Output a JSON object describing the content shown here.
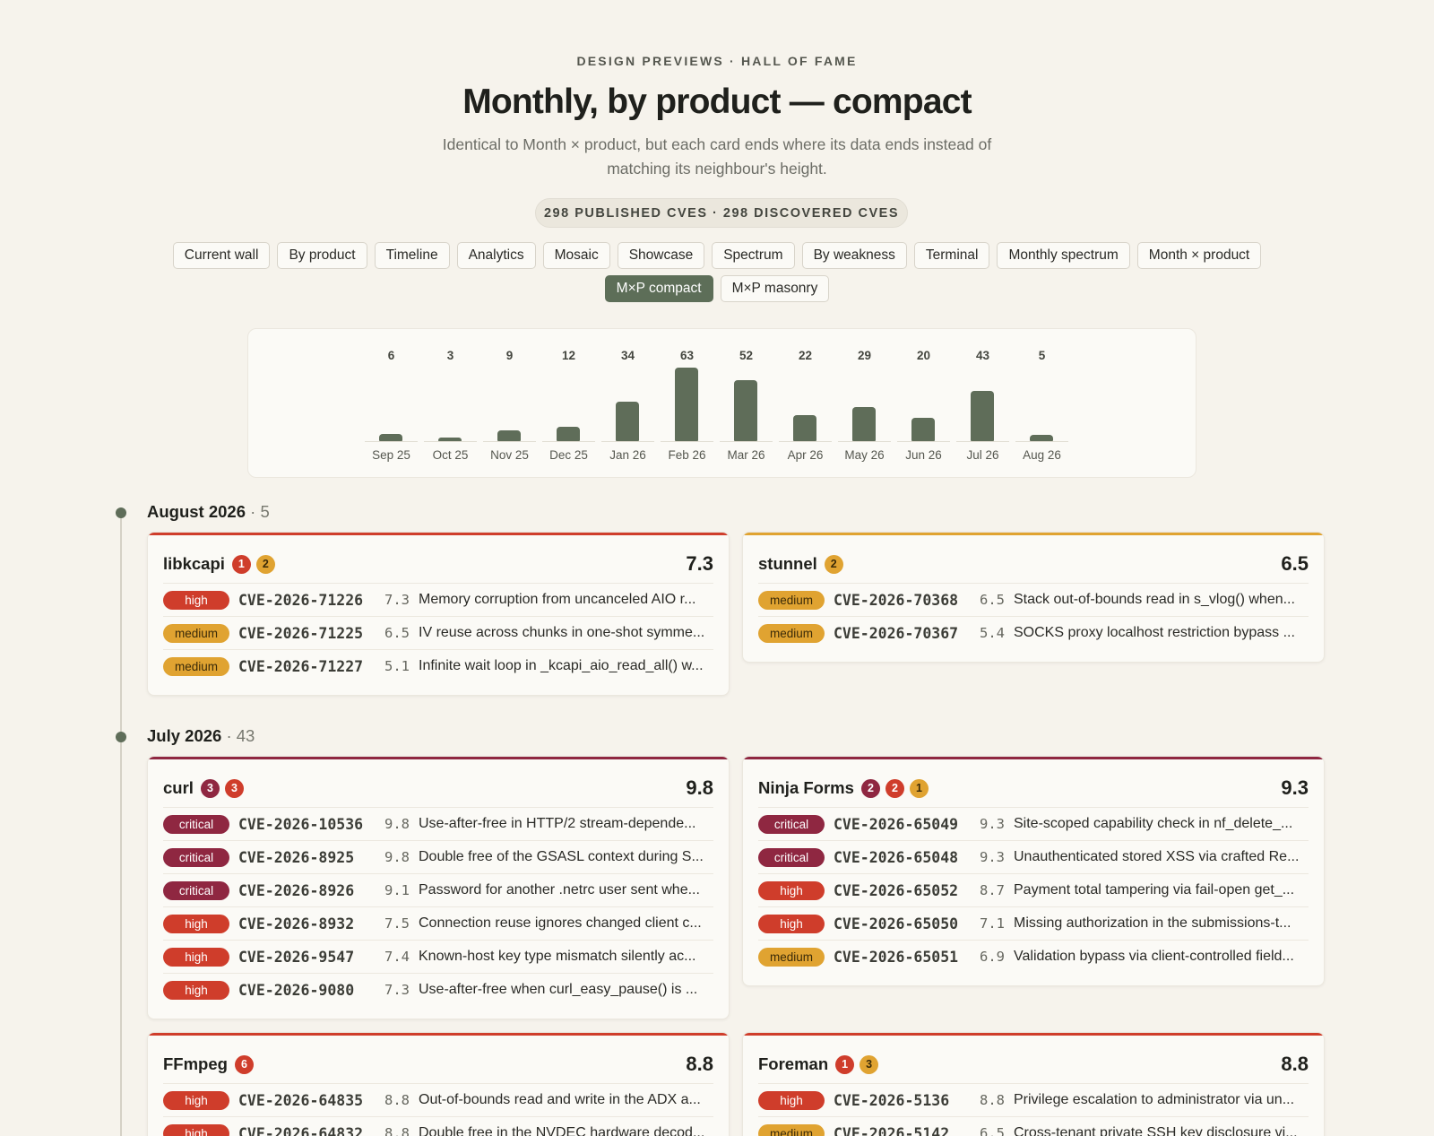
{
  "header": {
    "kicker": "DESIGN PREVIEWS · HALL OF FAME",
    "title": "Monthly, by product — compact",
    "subtitle": "Identical to Month × product, but each card ends where its data ends instead of matching its neighbour's height.",
    "counts": "298 PUBLISHED CVES · 298 DISCOVERED CVES"
  },
  "nav": {
    "items": [
      "Current wall",
      "By product",
      "Timeline",
      "Analytics",
      "Mosaic",
      "Showcase",
      "Spectrum",
      "By weakness",
      "Terminal",
      "Monthly spectrum",
      "Month × product",
      "M×P compact",
      "M×P masonry"
    ],
    "active": "M×P compact"
  },
  "chart_data": {
    "type": "bar",
    "categories": [
      "Sep 25",
      "Oct 25",
      "Nov 25",
      "Dec 25",
      "Jan 26",
      "Feb 26",
      "Mar 26",
      "Apr 26",
      "May 26",
      "Jun 26",
      "Jul 26",
      "Aug 26"
    ],
    "values": [
      6,
      3,
      9,
      12,
      34,
      63,
      52,
      22,
      29,
      20,
      43,
      5
    ],
    "value_labels": [
      "6",
      "3",
      "9",
      "12",
      "34",
      "63",
      "52",
      "22",
      "29",
      "20",
      "43",
      "5"
    ],
    "bar_color": "#5f6d59",
    "grid": false,
    "title": "",
    "xlabel": "",
    "ylabel": ""
  },
  "colors": {
    "critical": "#8f2741",
    "high": "#cf3d2b",
    "medium": "#e0a331"
  },
  "months": [
    {
      "label": "August 2026",
      "count": "· 5",
      "cards": [
        {
          "product": "libkcapi",
          "counts": [
            {
              "sev": "high",
              "n": "1"
            },
            {
              "sev": "medium",
              "n": "2"
            }
          ],
          "score": "7.3",
          "top_sev": "high",
          "rows": [
            {
              "sev": "high",
              "cve": "CVE-2026-71226",
              "score": "7.3",
              "desc": "Memory corruption from uncanceled AIO r..."
            },
            {
              "sev": "medium",
              "cve": "CVE-2026-71225",
              "score": "6.5",
              "desc": "IV reuse across chunks in one-shot symme..."
            },
            {
              "sev": "medium",
              "cve": "CVE-2026-71227",
              "score": "5.1",
              "desc": "Infinite wait loop in _kcapi_aio_read_all() w..."
            }
          ]
        },
        {
          "product": "stunnel",
          "counts": [
            {
              "sev": "medium",
              "n": "2"
            }
          ],
          "score": "6.5",
          "top_sev": "medium",
          "rows": [
            {
              "sev": "medium",
              "cve": "CVE-2026-70368",
              "score": "6.5",
              "desc": "Stack out-of-bounds read in s_vlog() when..."
            },
            {
              "sev": "medium",
              "cve": "CVE-2026-70367",
              "score": "5.4",
              "desc": "SOCKS proxy localhost restriction bypass ..."
            }
          ]
        }
      ]
    },
    {
      "label": "July 2026",
      "count": "· 43",
      "cards": [
        {
          "product": "curl",
          "counts": [
            {
              "sev": "critical",
              "n": "3"
            },
            {
              "sev": "high",
              "n": "3"
            }
          ],
          "score": "9.8",
          "top_sev": "critical",
          "rows": [
            {
              "sev": "critical",
              "cve": "CVE-2026-10536",
              "score": "9.8",
              "desc": "Use-after-free in HTTP/2 stream-depende..."
            },
            {
              "sev": "critical",
              "cve": "CVE-2026-8925",
              "score": "9.8",
              "desc": "Double free of the GSASL context during S..."
            },
            {
              "sev": "critical",
              "cve": "CVE-2026-8926",
              "score": "9.1",
              "desc": "Password for another .netrc user sent whe..."
            },
            {
              "sev": "high",
              "cve": "CVE-2026-8932",
              "score": "7.5",
              "desc": "Connection reuse ignores changed client c..."
            },
            {
              "sev": "high",
              "cve": "CVE-2026-9547",
              "score": "7.4",
              "desc": "Known-host key type mismatch silently ac..."
            },
            {
              "sev": "high",
              "cve": "CVE-2026-9080",
              "score": "7.3",
              "desc": "Use-after-free when curl_easy_pause() is ..."
            }
          ]
        },
        {
          "product": "Ninja Forms",
          "counts": [
            {
              "sev": "critical",
              "n": "2"
            },
            {
              "sev": "high",
              "n": "2"
            },
            {
              "sev": "medium",
              "n": "1"
            }
          ],
          "score": "9.3",
          "top_sev": "critical",
          "rows": [
            {
              "sev": "critical",
              "cve": "CVE-2026-65049",
              "score": "9.3",
              "desc": "Site-scoped capability check in nf_delete_..."
            },
            {
              "sev": "critical",
              "cve": "CVE-2026-65048",
              "score": "9.3",
              "desc": "Unauthenticated stored XSS via crafted Re..."
            },
            {
              "sev": "high",
              "cve": "CVE-2026-65052",
              "score": "8.7",
              "desc": "Payment total tampering via fail-open get_..."
            },
            {
              "sev": "high",
              "cve": "CVE-2026-65050",
              "score": "7.1",
              "desc": "Missing authorization in the submissions-t..."
            },
            {
              "sev": "medium",
              "cve": "CVE-2026-65051",
              "score": "6.9",
              "desc": "Validation bypass via client-controlled field..."
            }
          ]
        },
        {
          "product": "FFmpeg",
          "counts": [
            {
              "sev": "high",
              "n": "6"
            }
          ],
          "score": "8.8",
          "top_sev": "high",
          "rows": [
            {
              "sev": "high",
              "cve": "CVE-2026-64835",
              "score": "8.8",
              "desc": "Out-of-bounds read and write in the ADX a..."
            },
            {
              "sev": "high",
              "cve": "CVE-2026-64832",
              "score": "8.8",
              "desc": "Double free in the NVDEC hardware decod..."
            }
          ]
        },
        {
          "product": "Foreman",
          "counts": [
            {
              "sev": "high",
              "n": "1"
            },
            {
              "sev": "medium",
              "n": "3"
            }
          ],
          "score": "8.8",
          "top_sev": "high",
          "rows": [
            {
              "sev": "high",
              "cve": "CVE-2026-5136",
              "score": "8.8",
              "desc": "Privilege escalation to administrator via un..."
            },
            {
              "sev": "medium",
              "cve": "CVE-2026-5142",
              "score": "6.5",
              "desc": "Cross-tenant private SSH key disclosure vi..."
            }
          ]
        }
      ]
    }
  ]
}
